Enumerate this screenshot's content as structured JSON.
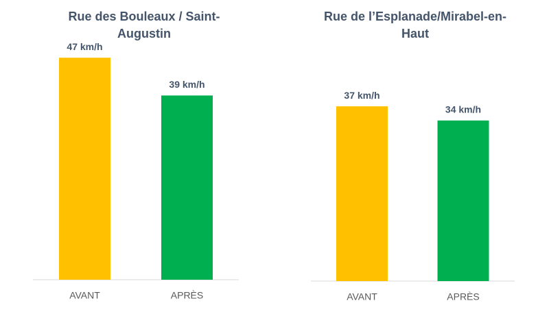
{
  "chart_data": [
    {
      "type": "bar",
      "title": "Rue des Bouleaux / Saint-Augustin",
      "categories": [
        "AVANT",
        "APRÈS"
      ],
      "values": [
        47,
        39
      ],
      "value_labels": [
        "47 km/h",
        "39 km/h"
      ],
      "colors": [
        "#ffc000",
        "#00b050"
      ]
    },
    {
      "type": "bar",
      "title": "Rue de l’Esplanade/Mirabel-en-Haut",
      "categories": [
        "AVANT",
        "APRÈS"
      ],
      "values": [
        37,
        34
      ],
      "value_labels": [
        "37 km/h",
        "34 km/h"
      ],
      "colors": [
        "#ffc000",
        "#00b050"
      ]
    }
  ]
}
